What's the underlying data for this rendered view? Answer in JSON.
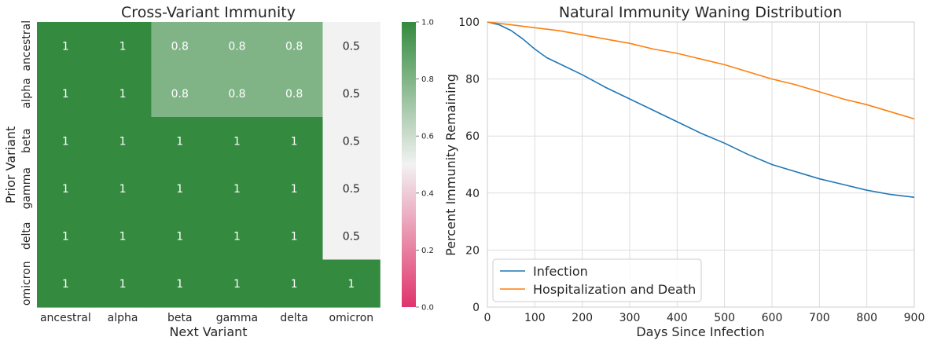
{
  "chart_data": [
    {
      "type": "heatmap",
      "title": "Cross-Variant Immunity",
      "xlabel": "Next Variant",
      "ylabel": "Prior Variant",
      "x_categories": [
        "ancestral",
        "alpha",
        "beta",
        "gamma",
        "delta",
        "omicron"
      ],
      "y_categories": [
        "ancestral",
        "alpha",
        "beta",
        "gamma",
        "delta",
        "omicron"
      ],
      "values": [
        [
          1,
          1,
          0.8,
          0.8,
          0.8,
          0.5
        ],
        [
          1,
          1,
          0.8,
          0.8,
          0.8,
          0.5
        ],
        [
          1,
          1,
          1,
          1,
          1,
          0.5
        ],
        [
          1,
          1,
          1,
          1,
          1,
          0.5
        ],
        [
          1,
          1,
          1,
          1,
          1,
          0.5
        ],
        [
          1,
          1,
          1,
          1,
          1,
          1
        ]
      ],
      "colorbar": {
        "vmin": 0,
        "vmax": 1,
        "ticks": [
          "0.0",
          "0.2",
          "0.4",
          "0.6",
          "0.8",
          "1.0"
        ],
        "colors": {
          "low": "#e0336b",
          "mid": "#f2f2f2",
          "high": "#348a3e"
        }
      }
    },
    {
      "type": "line",
      "title": "Natural Immunity Waning Distribution",
      "xlabel": "Days Since Infection",
      "ylabel": "Percent Immunity Remaining",
      "xlim": [
        0,
        900
      ],
      "ylim": [
        0,
        100
      ],
      "xticks": [
        0,
        100,
        200,
        300,
        400,
        500,
        600,
        700,
        800,
        900
      ],
      "yticks": [
        0,
        20,
        40,
        60,
        80,
        100
      ],
      "grid": true,
      "legend_position": "bottom-left",
      "series": [
        {
          "name": "Infection",
          "color": "#1f77b4",
          "x": [
            0,
            25,
            50,
            75,
            100,
            125,
            150,
            200,
            250,
            300,
            350,
            400,
            450,
            500,
            550,
            600,
            650,
            700,
            750,
            800,
            850,
            900
          ],
          "y": [
            100,
            99,
            97,
            94,
            90.5,
            87.5,
            85.5,
            81.5,
            77,
            73,
            69,
            65,
            61,
            57.5,
            53.5,
            50,
            47.5,
            45,
            43,
            41,
            39.5,
            38.5
          ]
        },
        {
          "name": "Hospitalization and Death",
          "color": "#ff7f0e",
          "x": [
            0,
            50,
            100,
            150,
            200,
            250,
            300,
            350,
            400,
            450,
            500,
            550,
            600,
            650,
            700,
            750,
            800,
            850,
            900
          ],
          "y": [
            100,
            99,
            98,
            97,
            95.5,
            94,
            92.5,
            90.5,
            89,
            87,
            85,
            82.5,
            80,
            78,
            75.5,
            73,
            71,
            68.5,
            66
          ]
        }
      ]
    }
  ]
}
